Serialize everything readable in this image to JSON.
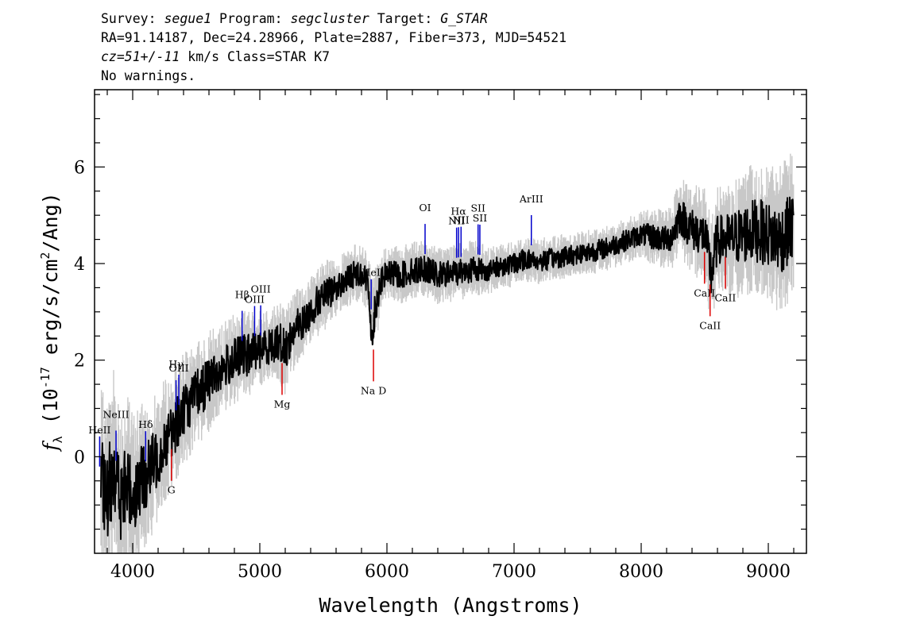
{
  "header": {
    "line1": {
      "survey_label": "Survey: ",
      "survey": "segue1",
      "program_label": " Program: ",
      "program": "segcluster",
      "target_label": " Target: ",
      "target": "G_STAR"
    },
    "line2": "RA=91.14187, Dec=24.28966, Plate=2887, Fiber=373, MJD=54521",
    "line3": {
      "cz": "cz=51+/-11",
      "rest": " km/s Class=STAR K7"
    },
    "line4": "No warnings."
  },
  "chart_data": {
    "type": "line",
    "xlabel": "Wavelength (Angstroms)",
    "ylabel": "f_λ (10^-17 erg/s/cm^2/Ang)",
    "xlim": [
      3700,
      9300
    ],
    "ylim": [
      -2.0,
      7.6
    ],
    "xticks": [
      4000,
      5000,
      6000,
      7000,
      8000,
      9000
    ],
    "yticks": [
      0,
      2,
      4,
      6
    ],
    "grid": false,
    "series": [
      {
        "style": "error-band",
        "color": "#c8c8c8",
        "x": [
          3750,
          3800,
          3850,
          3900,
          3950,
          4000,
          4050,
          4100,
          4150,
          4200,
          4250,
          4300,
          4350,
          4400,
          4450,
          4500,
          4550,
          4600,
          4650,
          4700,
          4750,
          4800,
          4850,
          4900,
          4950,
          5000,
          5050,
          5100,
          5150,
          5200,
          5250,
          5300,
          5350,
          5400,
          5450,
          5500,
          5550,
          5600,
          5650,
          5700,
          5750,
          5800,
          5850,
          5900,
          5950,
          6000,
          6100,
          6200,
          6300,
          6400,
          6500,
          6600,
          6700,
          6800,
          6900,
          7000,
          7100,
          7200,
          7300,
          7400,
          7500,
          7600,
          7700,
          7800,
          7900,
          8000,
          8100,
          8200,
          8250,
          8300,
          8400,
          8500,
          8550,
          8600,
          8700,
          8800,
          8900,
          9000,
          9100,
          9200
        ],
        "y": [
          -0.5,
          -1.0,
          0.0,
          -1.0,
          -0.6,
          -0.8,
          -0.6,
          -0.4,
          -0.2,
          0.0,
          0.3,
          0.5,
          0.7,
          1.0,
          1.1,
          1.3,
          1.4,
          1.6,
          1.7,
          1.8,
          1.9,
          2.0,
          2.1,
          2.1,
          2.2,
          2.2,
          2.3,
          2.3,
          2.4,
          2.2,
          2.5,
          2.7,
          2.8,
          3.0,
          3.2,
          3.3,
          3.4,
          3.5,
          3.6,
          3.7,
          3.8,
          3.8,
          3.6,
          3.0,
          3.6,
          3.8,
          3.75,
          3.85,
          3.9,
          3.75,
          3.8,
          3.85,
          3.9,
          3.85,
          3.95,
          4.0,
          4.1,
          4.05,
          4.1,
          4.15,
          4.2,
          4.25,
          4.3,
          4.4,
          4.5,
          4.6,
          4.55,
          4.5,
          4.6,
          5.0,
          4.7,
          4.6,
          3.8,
          4.5,
          4.5,
          4.6,
          4.7,
          4.6,
          4.5,
          4.8
        ],
        "spread": [
          1.6,
          1.8,
          1.7,
          1.7,
          1.6,
          1.5,
          1.4,
          1.3,
          1.2,
          1.1,
          1.1,
          1.0,
          1.0,
          1.0,
          0.9,
          0.9,
          0.9,
          0.9,
          0.8,
          0.8,
          0.8,
          0.8,
          0.8,
          0.8,
          0.7,
          0.7,
          0.7,
          0.7,
          0.7,
          0.8,
          0.7,
          0.7,
          0.6,
          0.6,
          0.6,
          0.6,
          0.6,
          0.5,
          0.5,
          0.5,
          0.5,
          0.5,
          0.5,
          0.8,
          0.5,
          0.5,
          0.5,
          0.5,
          0.5,
          0.5,
          0.5,
          0.5,
          0.5,
          0.4,
          0.4,
          0.4,
          0.4,
          0.4,
          0.4,
          0.4,
          0.4,
          0.4,
          0.4,
          0.4,
          0.4,
          0.4,
          0.5,
          0.5,
          0.6,
          0.7,
          0.8,
          0.8,
          1.0,
          0.9,
          1.0,
          1.1,
          1.2,
          1.2,
          1.3,
          1.3
        ]
      },
      {
        "style": "flux",
        "color": "#000000",
        "x": [
          3750,
          3800,
          3850,
          3900,
          3950,
          4000,
          4050,
          4100,
          4150,
          4200,
          4250,
          4300,
          4350,
          4400,
          4450,
          4500,
          4550,
          4600,
          4650,
          4700,
          4750,
          4800,
          4850,
          4900,
          4950,
          5000,
          5050,
          5100,
          5150,
          5200,
          5250,
          5300,
          5350,
          5400,
          5450,
          5500,
          5550,
          5600,
          5650,
          5700,
          5750,
          5800,
          5850,
          5890,
          5900,
          5950,
          6000,
          6100,
          6200,
          6300,
          6400,
          6500,
          6600,
          6700,
          6800,
          6900,
          7000,
          7100,
          7200,
          7300,
          7400,
          7500,
          7600,
          7700,
          7800,
          7900,
          8000,
          8100,
          8200,
          8250,
          8300,
          8400,
          8500,
          8550,
          8600,
          8700,
          8800,
          8900,
          9000,
          9100,
          9200
        ],
        "y": [
          -0.5,
          -1.0,
          0.0,
          -1.0,
          -0.6,
          -0.8,
          -0.6,
          -0.4,
          -0.2,
          0.0,
          0.3,
          0.5,
          0.7,
          1.0,
          1.1,
          1.3,
          1.4,
          1.6,
          1.7,
          1.8,
          1.9,
          2.0,
          2.1,
          2.1,
          2.2,
          2.2,
          2.3,
          2.3,
          2.4,
          2.2,
          2.5,
          2.7,
          2.8,
          3.0,
          3.2,
          3.3,
          3.4,
          3.5,
          3.6,
          3.7,
          3.8,
          3.8,
          3.6,
          2.3,
          3.0,
          3.6,
          3.8,
          3.75,
          3.85,
          3.9,
          3.75,
          3.8,
          3.85,
          3.9,
          3.85,
          3.95,
          4.0,
          4.1,
          4.05,
          4.1,
          4.15,
          4.2,
          4.25,
          4.3,
          4.4,
          4.5,
          4.6,
          4.55,
          4.5,
          4.6,
          5.0,
          4.7,
          4.6,
          3.8,
          4.5,
          4.5,
          4.6,
          4.7,
          4.6,
          4.5,
          4.8
        ]
      }
    ],
    "emission_lines": [
      {
        "label": "HeII",
        "x": 3740,
        "color": "#0000cc"
      },
      {
        "label": "NeIII",
        "x": 3869,
        "color": "#0000cc"
      },
      {
        "label": "Hδ",
        "x": 4102,
        "color": "#0000cc"
      },
      {
        "label": "Hγ",
        "x": 4341,
        "color": "#0000cc"
      },
      {
        "label": "OIII",
        "x": 4363,
        "color": "#0000cc"
      },
      {
        "label": "Hβ",
        "x": 4861,
        "color": "#0000cc"
      },
      {
        "label": "OIII",
        "x": 4959,
        "color": "#0000cc"
      },
      {
        "label": "OIII",
        "x": 5007,
        "color": "#0000cc"
      },
      {
        "label": "HeI",
        "x": 5876,
        "color": "#0000cc"
      },
      {
        "label": "OI",
        "x": 6300,
        "color": "#0000cc"
      },
      {
        "label": "NII",
        "x": 6548,
        "color": "#0000cc"
      },
      {
        "label": "Hα",
        "x": 6563,
        "color": "#0000cc"
      },
      {
        "label": "NII",
        "x": 6583,
        "color": "#0000cc"
      },
      {
        "label": "SII",
        "x": 6717,
        "color": "#0000cc"
      },
      {
        "label": "SII",
        "x": 6731,
        "color": "#0000cc"
      },
      {
        "label": "ArIII",
        "x": 7136,
        "color": "#0000cc"
      }
    ],
    "absorption_lines": [
      {
        "label": "G",
        "x": 4305,
        "color": "#dd0000"
      },
      {
        "label": "Mg",
        "x": 5175,
        "color": "#dd0000"
      },
      {
        "label": "Na D",
        "x": 5894,
        "color": "#dd0000"
      },
      {
        "label": "CaII",
        "x": 8498,
        "color": "#dd0000"
      },
      {
        "label": "CaII",
        "x": 8542,
        "color": "#dd0000"
      },
      {
        "label": "CaII",
        "x": 8662,
        "color": "#dd0000"
      }
    ]
  }
}
